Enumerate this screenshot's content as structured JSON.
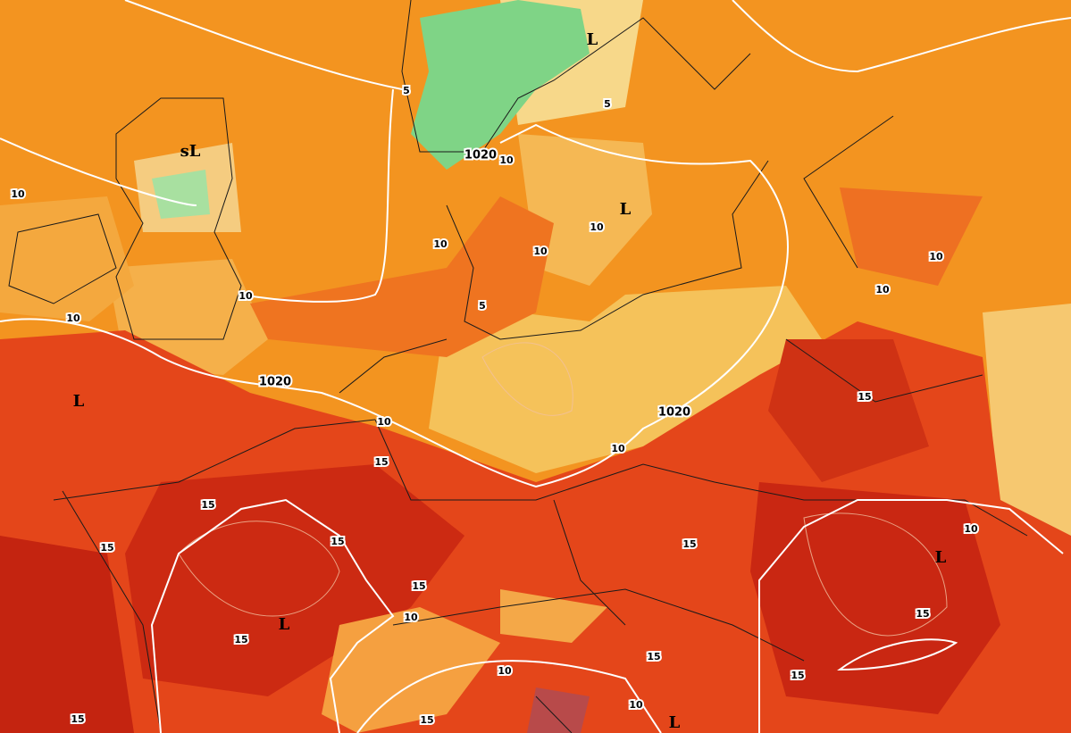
{
  "map": {
    "labels": [
      "L",
      "5",
      "5",
      "sL",
      "1020",
      "10",
      "10",
      "L",
      "10",
      "10",
      "10",
      "10",
      "10",
      "10",
      "10",
      "5",
      "1020",
      "L",
      "1020",
      "10",
      "15",
      "10",
      "15",
      "15",
      "15",
      "15",
      "15",
      "10",
      "L",
      "15",
      "10",
      "L",
      "15",
      "15",
      "15",
      "10",
      "15",
      "10",
      "15",
      "15",
      "L"
    ]
  }
}
